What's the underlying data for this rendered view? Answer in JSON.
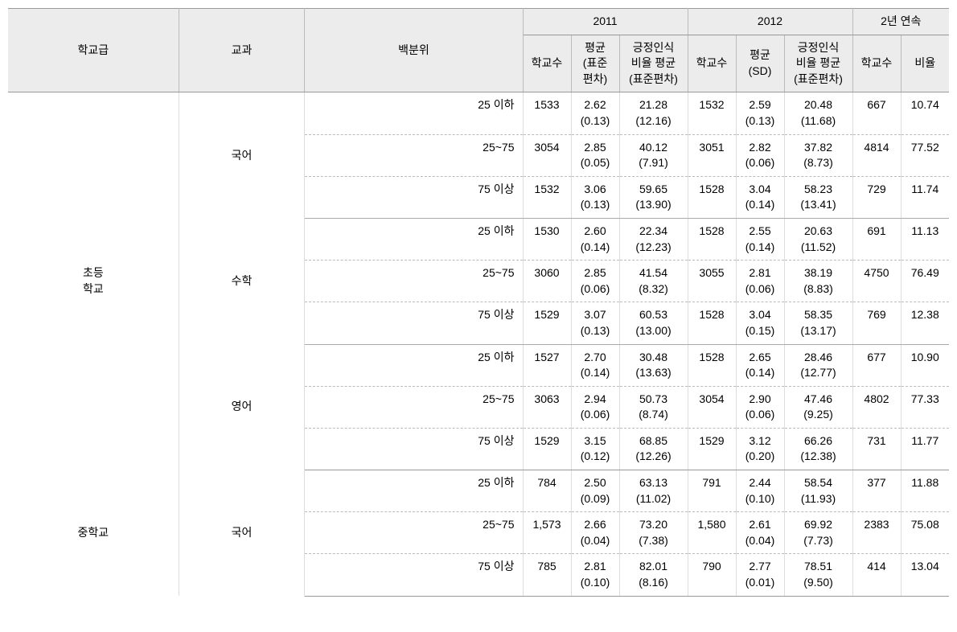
{
  "header": {
    "level": "학교급",
    "subject": "교과",
    "percentile": "백분위",
    "year2011": "2011",
    "year2012": "2012",
    "consecutive": "2년 연속",
    "schools": "학교수",
    "mean_sd_2011": "평균\n(표준\n편차)",
    "positive_2011": "긍정인식\n비율 평균\n(표준편차)",
    "mean_sd_2012": "평균\n(SD)",
    "positive_2012": "긍정인식\n비율 평균\n(표준편차)",
    "ratio": "비율"
  },
  "levels": {
    "elementary": "초등\n학교",
    "middle": "중학교"
  },
  "subjects": {
    "korean": "국어",
    "math": "수학",
    "english": "영어"
  },
  "percentiles": {
    "low": "25 이하",
    "mid": "25~75",
    "high": "75 이상"
  },
  "rows": [
    {
      "schools_2011": "1533",
      "mean_2011": "2.62",
      "mean_sd_2011": "(0.13)",
      "pos_2011": "21.28",
      "pos_sd_2011": "(12.16)",
      "schools_2012": "1532",
      "mean_2012": "2.59",
      "mean_sd_2012": "(0.13)",
      "pos_2012": "20.48",
      "pos_sd_2012": "(11.68)",
      "cons_schools": "667",
      "ratio": "10.74"
    },
    {
      "schools_2011": "3054",
      "mean_2011": "2.85",
      "mean_sd_2011": "(0.05)",
      "pos_2011": "40.12",
      "pos_sd_2011": "(7.91)",
      "schools_2012": "3051",
      "mean_2012": "2.82",
      "mean_sd_2012": "(0.06)",
      "pos_2012": "37.82",
      "pos_sd_2012": "(8.73)",
      "cons_schools": "4814",
      "ratio": "77.52"
    },
    {
      "schools_2011": "1532",
      "mean_2011": "3.06",
      "mean_sd_2011": "(0.13)",
      "pos_2011": "59.65",
      "pos_sd_2011": "(13.90)",
      "schools_2012": "1528",
      "mean_2012": "3.04",
      "mean_sd_2012": "(0.14)",
      "pos_2012": "58.23",
      "pos_sd_2012": "(13.41)",
      "cons_schools": "729",
      "ratio": "11.74"
    },
    {
      "schools_2011": "1530",
      "mean_2011": "2.60",
      "mean_sd_2011": "(0.14)",
      "pos_2011": "22.34",
      "pos_sd_2011": "(12.23)",
      "schools_2012": "1528",
      "mean_2012": "2.55",
      "mean_sd_2012": "(0.14)",
      "pos_2012": "20.63",
      "pos_sd_2012": "(11.52)",
      "cons_schools": "691",
      "ratio": "11.13"
    },
    {
      "schools_2011": "3060",
      "mean_2011": "2.85",
      "mean_sd_2011": "(0.06)",
      "pos_2011": "41.54",
      "pos_sd_2011": "(8.32)",
      "schools_2012": "3055",
      "mean_2012": "2.81",
      "mean_sd_2012": "(0.06)",
      "pos_2012": "38.19",
      "pos_sd_2012": "(8.83)",
      "cons_schools": "4750",
      "ratio": "76.49"
    },
    {
      "schools_2011": "1529",
      "mean_2011": "3.07",
      "mean_sd_2011": "(0.13)",
      "pos_2011": "60.53",
      "pos_sd_2011": "(13.00)",
      "schools_2012": "1528",
      "mean_2012": "3.04",
      "mean_sd_2012": "(0.15)",
      "pos_2012": "58.35",
      "pos_sd_2012": "(13.17)",
      "cons_schools": "769",
      "ratio": "12.38"
    },
    {
      "schools_2011": "1527",
      "mean_2011": "2.70",
      "mean_sd_2011": "(0.14)",
      "pos_2011": "30.48",
      "pos_sd_2011": "(13.63)",
      "schools_2012": "1528",
      "mean_2012": "2.65",
      "mean_sd_2012": "(0.14)",
      "pos_2012": "28.46",
      "pos_sd_2012": "(12.77)",
      "cons_schools": "677",
      "ratio": "10.90"
    },
    {
      "schools_2011": "3063",
      "mean_2011": "2.94",
      "mean_sd_2011": "(0.06)",
      "pos_2011": "50.73",
      "pos_sd_2011": "(8.74)",
      "schools_2012": "3054",
      "mean_2012": "2.90",
      "mean_sd_2012": "(0.06)",
      "pos_2012": "47.46",
      "pos_sd_2012": "(9.25)",
      "cons_schools": "4802",
      "ratio": "77.33"
    },
    {
      "schools_2011": "1529",
      "mean_2011": "3.15",
      "mean_sd_2011": "(0.12)",
      "pos_2011": "68.85",
      "pos_sd_2011": "(12.26)",
      "schools_2012": "1529",
      "mean_2012": "3.12",
      "mean_sd_2012": "(0.20)",
      "pos_2012": "66.26",
      "pos_sd_2012": "(12.38)",
      "cons_schools": "731",
      "ratio": "11.77"
    },
    {
      "schools_2011": "784",
      "mean_2011": "2.50",
      "mean_sd_2011": "(0.09)",
      "pos_2011": "63.13",
      "pos_sd_2011": "(11.02)",
      "schools_2012": "791",
      "mean_2012": "2.44",
      "mean_sd_2012": "(0.10)",
      "pos_2012": "58.54",
      "pos_sd_2012": "(11.93)",
      "cons_schools": "377",
      "ratio": "11.88"
    },
    {
      "schools_2011": "1,573",
      "mean_2011": "2.66",
      "mean_sd_2011": "(0.04)",
      "pos_2011": "73.20",
      "pos_sd_2011": "(7.38)",
      "schools_2012": "1,580",
      "mean_2012": "2.61",
      "mean_sd_2012": "(0.04)",
      "pos_2012": "69.92",
      "pos_sd_2012": "(7.73)",
      "cons_schools": "2383",
      "ratio": "75.08"
    },
    {
      "schools_2011": "785",
      "mean_2011": "2.81",
      "mean_sd_2011": "(0.10)",
      "pos_2011": "82.01",
      "pos_sd_2011": "(8.16)",
      "schools_2012": "790",
      "mean_2012": "2.77",
      "mean_sd_2012": "(0.01)",
      "pos_2012": "78.51",
      "pos_sd_2012": "(9.50)",
      "cons_schools": "414",
      "ratio": "13.04"
    }
  ]
}
